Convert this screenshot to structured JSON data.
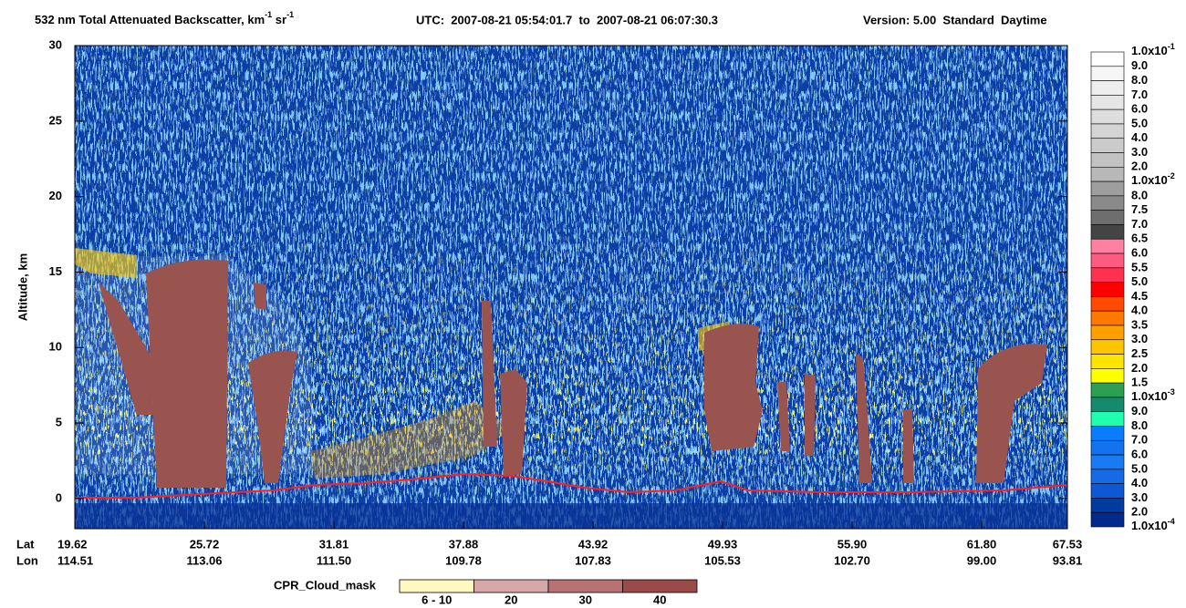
{
  "chart_data": {
    "type": "curtain",
    "title": {
      "text": "532 nm Total Attenuated Backscatter, km",
      "sup1": "-1",
      "unit2": " sr",
      "sup2": "-1"
    },
    "utc": "UTC:  2007-08-21 05:54:01.7  to  2007-08-21 06:07:30.3",
    "version": "Version: 5.00  Standard  Daytime",
    "y_label": "Altitude, km",
    "ylim": [
      -2,
      30
    ],
    "yticks": [
      0,
      5,
      10,
      15,
      20,
      25,
      30
    ],
    "x_labels": {
      "lat_label": "Lat",
      "lon_label": "Lon",
      "lat": [
        "19.62",
        "25.72",
        "31.81",
        "37.88",
        "43.92",
        "49.93",
        "55.90",
        "61.80",
        "67.53"
      ],
      "lon": [
        "114.51",
        "113.06",
        "111.50",
        "109.78",
        "107.83",
        "105.53",
        "102.70",
        "99.00",
        "93.81"
      ]
    },
    "colorbar": {
      "labels": [
        {
          "text": "1.0x10",
          "sup": "-1"
        },
        "9.0",
        "8.0",
        "7.0",
        "6.0",
        "5.0",
        "4.0",
        "3.0",
        "2.0",
        {
          "text": "1.0x10",
          "sup": "-2"
        },
        "8.0",
        "7.5",
        "7.0",
        "6.5",
        "6.0",
        "5.5",
        "5.0",
        "4.5",
        "4.0",
        "3.5",
        "3.0",
        "2.5",
        "2.0",
        "1.5",
        {
          "text": "1.0x10",
          "sup": "-3"
        },
        "9.0",
        "8.0",
        "7.0",
        "6.0",
        "5.0",
        "4.0",
        "3.0",
        "2.0",
        {
          "text": "1.0x10",
          "sup": "-4"
        }
      ],
      "colors": [
        "#ffffff",
        "#f6f6f6",
        "#eeeeee",
        "#e6e6e6",
        "#dddddd",
        "#d4d4d4",
        "#cbcbcb",
        "#c2c2c2",
        "#b8b8b8",
        "#9e9e9e",
        "#8a8a8a",
        "#6e6e6e",
        "#444444",
        "#ff80a0",
        "#ff5a80",
        "#ff3050",
        "#ff0000",
        "#ff4a00",
        "#ff7800",
        "#ffa000",
        "#ffc400",
        "#ffe400",
        "#ffff00",
        "#2aa050",
        "#168a6e",
        "#20ffb0",
        "#0a7cff",
        "#1272f0",
        "#1a7af4",
        "#166ae6",
        "#0e58d6",
        "#003ca0",
        "#002a8c"
      ]
    },
    "cloud_mask": {
      "label": "CPR_Cloud_mask",
      "labels": [
        "6 - 10",
        "20",
        "30",
        "40"
      ],
      "colors": [
        "#fff8c0",
        "#d8a8a8",
        "#b87272",
        "#9a4a48"
      ]
    }
  }
}
